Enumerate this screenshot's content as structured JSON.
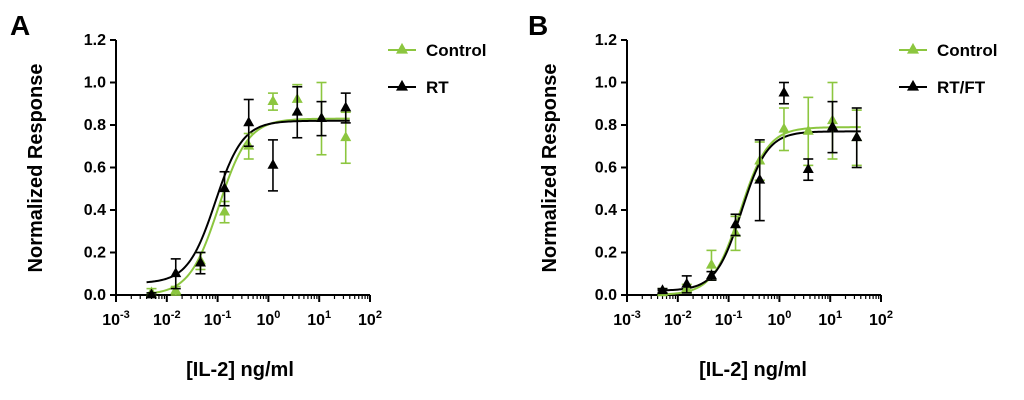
{
  "chart_data": [
    {
      "type": "scatter",
      "panel": "A",
      "xlabel": "[IL-2] ng/ml",
      "ylabel": "Normalized Response",
      "x_scale": "log",
      "xlim": [
        0.001,
        100
      ],
      "ylim": [
        0,
        1.2
      ],
      "x_ticks": [
        0.001,
        0.01,
        0.1,
        1,
        10,
        100
      ],
      "x_tick_labels": [
        {
          "base": "10",
          "exp": "-3"
        },
        {
          "base": "10",
          "exp": "-2"
        },
        {
          "base": "10",
          "exp": "-1"
        },
        {
          "base": "10",
          "exp": "0"
        },
        {
          "base": "10",
          "exp": "1"
        },
        {
          "base": "10",
          "exp": "2"
        }
      ],
      "y_ticks": [
        "0.0",
        "0.2",
        "0.4",
        "0.6",
        "0.8",
        "1.0",
        "1.2"
      ],
      "legend_position": "top-right",
      "series": [
        {
          "name": "Control",
          "color": "#8cc63f",
          "marker": "triangle",
          "x": [
            0.005,
            0.015,
            0.046,
            0.137,
            0.41,
            1.23,
            3.7,
            11.1,
            33.3
          ],
          "y": [
            0.01,
            0.02,
            0.16,
            0.39,
            0.7,
            0.91,
            0.92,
            0.83,
            0.74
          ],
          "err": [
            0.02,
            0.02,
            0.04,
            0.05,
            0.06,
            0.04,
            0.07,
            0.17,
            0.12
          ],
          "fit": {
            "bottom": 0.0,
            "top": 0.83,
            "ec50": 0.105,
            "hill": 1.5
          }
        },
        {
          "name": "RT",
          "color": "#000000",
          "marker": "triangle",
          "x": [
            0.005,
            0.015,
            0.046,
            0.137,
            0.41,
            1.23,
            3.7,
            11.1,
            33.3
          ],
          "y": [
            0.0,
            0.1,
            0.15,
            0.5,
            0.81,
            0.61,
            0.86,
            0.83,
            0.88
          ],
          "err": [
            0.01,
            0.07,
            0.05,
            0.08,
            0.11,
            0.12,
            0.12,
            0.08,
            0.07
          ],
          "fit": {
            "bottom": 0.055,
            "top": 0.82,
            "ec50": 0.09,
            "hill": 1.6
          }
        }
      ]
    },
    {
      "type": "scatter",
      "panel": "B",
      "xlabel": "[IL-2] ng/ml",
      "ylabel": "Normalized Response",
      "x_scale": "log",
      "xlim": [
        0.001,
        100
      ],
      "ylim": [
        0,
        1.2
      ],
      "x_ticks": [
        0.001,
        0.01,
        0.1,
        1,
        10,
        100
      ],
      "x_tick_labels": [
        {
          "base": "10",
          "exp": "-3"
        },
        {
          "base": "10",
          "exp": "-2"
        },
        {
          "base": "10",
          "exp": "-1"
        },
        {
          "base": "10",
          "exp": "0"
        },
        {
          "base": "10",
          "exp": "1"
        },
        {
          "base": "10",
          "exp": "2"
        }
      ],
      "y_ticks": [
        "0.0",
        "0.2",
        "0.4",
        "0.6",
        "0.8",
        "1.0",
        "1.2"
      ],
      "legend_position": "top-right",
      "series": [
        {
          "name": "Control",
          "color": "#8cc63f",
          "marker": "triangle",
          "x": [
            0.005,
            0.015,
            0.046,
            0.137,
            0.41,
            1.23,
            3.7,
            11.1,
            33.3
          ],
          "y": [
            0.01,
            0.03,
            0.14,
            0.29,
            0.63,
            0.78,
            0.77,
            0.82,
            0.74
          ],
          "err": [
            0.02,
            0.02,
            0.07,
            0.08,
            0.09,
            0.1,
            0.16,
            0.18,
            0.13
          ],
          "fit": {
            "bottom": 0.0,
            "top": 0.79,
            "ec50": 0.17,
            "hill": 1.6
          }
        },
        {
          "name": "RT/FT",
          "color": "#000000",
          "marker": "triangle",
          "x": [
            0.005,
            0.015,
            0.046,
            0.137,
            0.41,
            1.23,
            3.7,
            11.1,
            33.3
          ],
          "y": [
            0.02,
            0.05,
            0.09,
            0.33,
            0.54,
            0.95,
            0.59,
            0.79,
            0.74
          ],
          "err": [
            0.01,
            0.04,
            0.02,
            0.05,
            0.19,
            0.05,
            0.05,
            0.12,
            0.14
          ],
          "fit": {
            "bottom": 0.02,
            "top": 0.77,
            "ec50": 0.18,
            "hill": 1.7
          }
        }
      ]
    }
  ]
}
